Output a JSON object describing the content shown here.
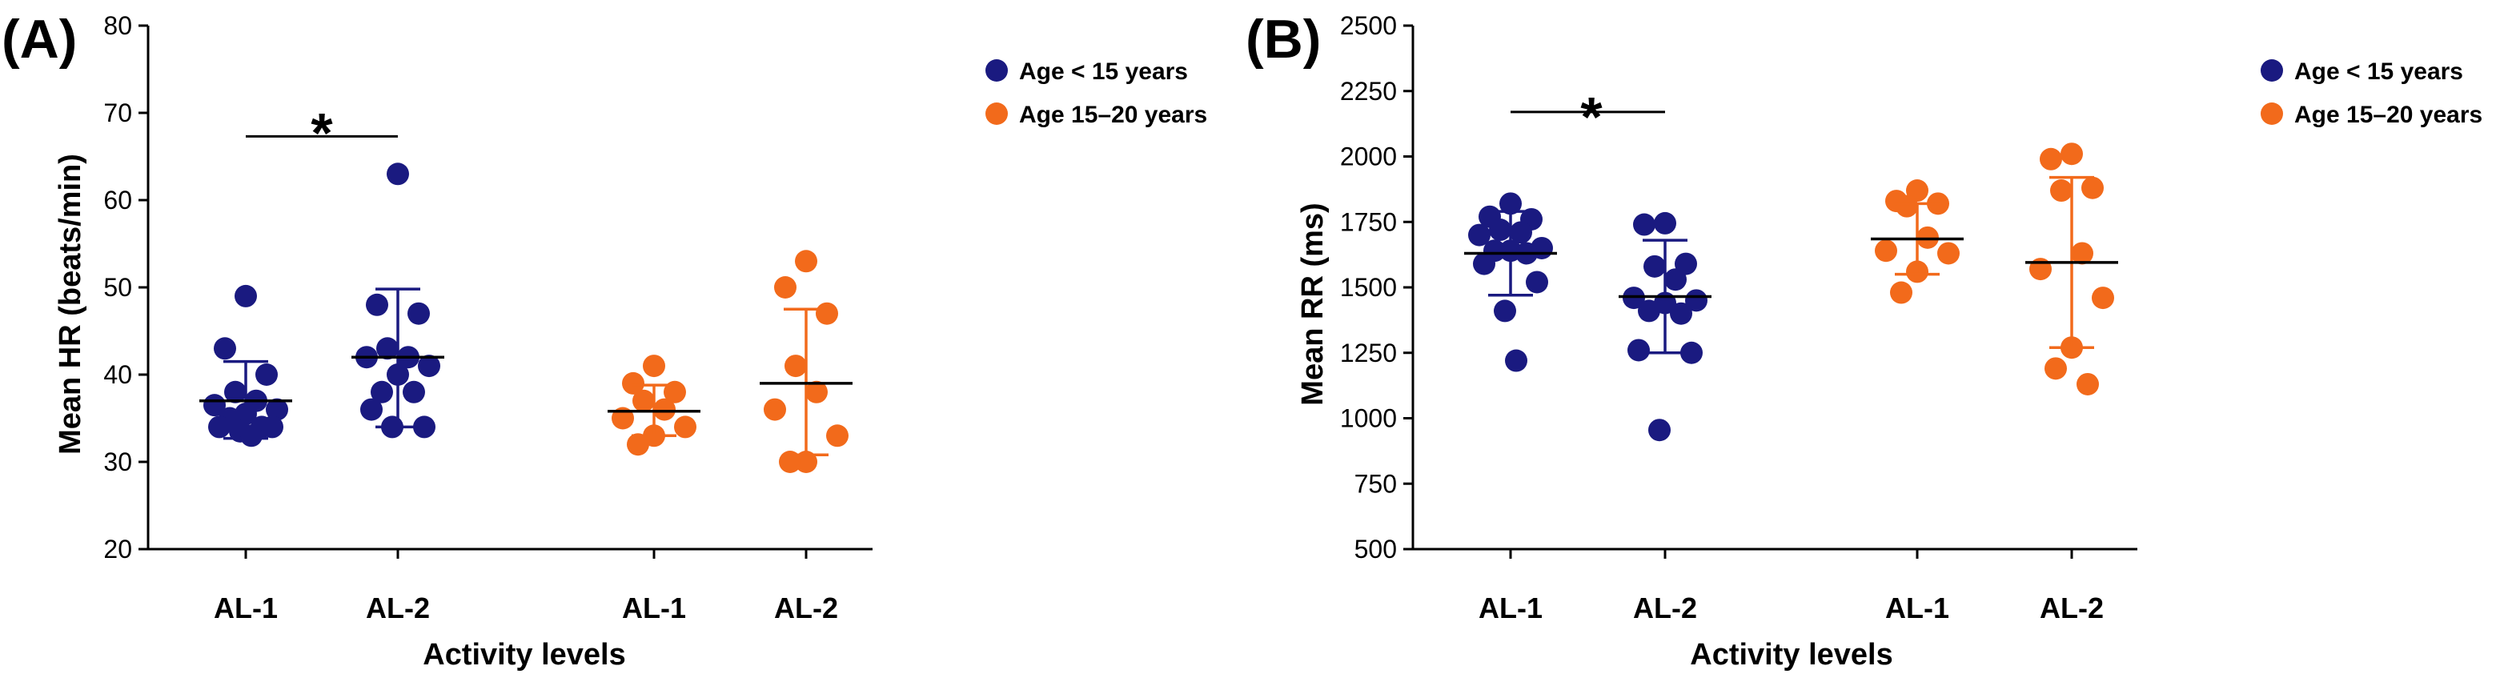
{
  "colors": {
    "age_lt15": "#1a1a80",
    "age_15_20": "#f26a1b",
    "axis": "#000000"
  },
  "chart_data": [
    {
      "type": "scatter",
      "panel_label": "(A)",
      "title": "",
      "xlabel": "Activity levels",
      "ylabel": "Mean HR (beats/min)",
      "ylim": [
        20,
        80
      ],
      "yticks": [
        20,
        30,
        40,
        50,
        60,
        70,
        80
      ],
      "ytick_labels": [
        "20",
        "30",
        "40",
        "50",
        "60",
        "70",
        "80"
      ],
      "categories": [
        "AL-1",
        "AL-2",
        "AL-1",
        "AL-2"
      ],
      "legend": [
        "Age < 15 years",
        "Age 15–20 years"
      ],
      "legend_position": "top-right",
      "significance": {
        "label": "*",
        "from": 0,
        "to": 1,
        "y": 67.3
      },
      "groups": [
        {
          "name": "Age < 15 years",
          "category": "AL-1",
          "series_index": 0,
          "values": [
            49,
            43,
            40,
            38,
            37,
            36.5,
            36,
            35.5,
            35,
            34,
            34,
            34,
            33.5,
            33
          ],
          "mean": 37,
          "sd_low": 32.7,
          "sd_high": 41.5
        },
        {
          "name": "Age < 15 years",
          "category": "AL-2",
          "series_index": 0,
          "values": [
            63,
            48,
            47,
            43,
            42,
            42,
            41,
            40,
            38,
            38,
            36,
            34,
            34
          ],
          "mean": 42,
          "sd_low": 34,
          "sd_high": 49.8
        },
        {
          "name": "Age 15–20 years",
          "category": "AL-1",
          "series_index": 1,
          "values": [
            41,
            39,
            38,
            37,
            36,
            35,
            34,
            33,
            32
          ],
          "mean": 35.8,
          "sd_low": 33,
          "sd_high": 38.8
        },
        {
          "name": "Age 15–20 years",
          "category": "AL-2",
          "series_index": 1,
          "values": [
            53,
            50,
            47,
            41,
            38,
            36,
            33,
            30,
            30
          ],
          "mean": 39,
          "sd_low": 30.8,
          "sd_high": 47.5
        }
      ]
    },
    {
      "type": "scatter",
      "panel_label": "(B)",
      "title": "",
      "xlabel": "Activity levels",
      "ylabel": "Mean RR (ms)",
      "ylim": [
        500,
        2500
      ],
      "yticks": [
        500,
        750,
        1000,
        1250,
        1500,
        1750,
        2000,
        2250,
        2500
      ],
      "ytick_labels": [
        "500",
        "750",
        "1000",
        "1250",
        "1500",
        "1750",
        "2000",
        "2250",
        "2500"
      ],
      "categories": [
        "AL-1",
        "AL-2",
        "AL-1",
        "AL-2"
      ],
      "legend": [
        "Age < 15 years",
        "Age 15–20 years"
      ],
      "legend_position": "top-right",
      "significance": {
        "label": "*",
        "from": 0,
        "to": 1,
        "y": 2170
      },
      "groups": [
        {
          "name": "Age < 15 years",
          "category": "AL-1",
          "series_index": 0,
          "values": [
            1820,
            1770,
            1760,
            1720,
            1710,
            1700,
            1650,
            1640,
            1640,
            1630,
            1590,
            1520,
            1410,
            1220
          ],
          "mean": 1630,
          "sd_low": 1470,
          "sd_high": 1790
        },
        {
          "name": "Age < 15 years",
          "category": "AL-2",
          "series_index": 0,
          "values": [
            1745,
            1740,
            1590,
            1580,
            1530,
            1460,
            1450,
            1440,
            1410,
            1400,
            1260,
            1250,
            955
          ],
          "mean": 1465,
          "sd_low": 1250,
          "sd_high": 1680
        },
        {
          "name": "Age 15–20 years",
          "category": "AL-1",
          "series_index": 1,
          "values": [
            1870,
            1830,
            1820,
            1810,
            1690,
            1640,
            1630,
            1560,
            1480
          ],
          "mean": 1685,
          "sd_low": 1550,
          "sd_high": 1820
        },
        {
          "name": "Age 15–20 years",
          "category": "AL-2",
          "series_index": 1,
          "values": [
            2010,
            1990,
            1880,
            1870,
            1630,
            1570,
            1460,
            1270,
            1190,
            1130
          ],
          "mean": 1595,
          "sd_low": 1270,
          "sd_high": 1920
        }
      ]
    }
  ]
}
